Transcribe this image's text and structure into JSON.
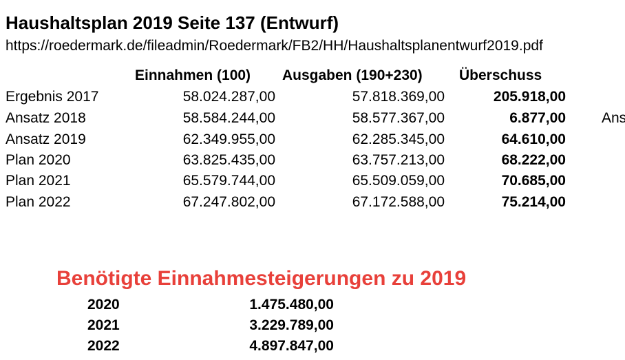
{
  "header": {
    "title": "Haushaltsplan 2019 Seite 137 (Entwurf)",
    "url": "https://roedermark.de/fileadmin/Roedermark/FB2/HH/Haushaltsplanentwurf2019.pdf"
  },
  "table": {
    "columns": [
      "Einnahmen (100)",
      "Ausgaben (190+230)",
      "Überschuss"
    ],
    "rows": [
      {
        "label": "Ergebnis 2017",
        "einnahmen": "58.024.287,00",
        "ausgaben": "57.818.369,00",
        "ueberschuss": "205.918,00"
      },
      {
        "label": "Ansatz 2018",
        "einnahmen": "58.584.244,00",
        "ausgaben": "58.577.367,00",
        "ueberschuss": "6.877,00"
      },
      {
        "label": "Ansatz 2019",
        "einnahmen": "62.349.955,00",
        "ausgaben": "62.285.345,00",
        "ueberschuss": "64.610,00"
      },
      {
        "label": "Plan 2020",
        "einnahmen": "63.825.435,00",
        "ausgaben": "63.757.213,00",
        "ueberschuss": "68.222,00"
      },
      {
        "label": "Plan 2021",
        "einnahmen": "65.579.744,00",
        "ausgaben": "65.509.059,00",
        "ueberschuss": "70.685,00"
      },
      {
        "label": "Plan 2022",
        "einnahmen": "67.247.802,00",
        "ausgaben": "67.172.588,00",
        "ueberschuss": "75.214,00"
      }
    ],
    "cut_off_text": "Ans"
  },
  "increases": {
    "title": "Benötigte Einnahmesteigerungen zu 2019",
    "title_color": "#e8403a",
    "rows": [
      {
        "year": "2020",
        "value": "1.475.480,00"
      },
      {
        "year": "2021",
        "value": "3.229.789,00"
      },
      {
        "year": "2022",
        "value": "4.897.847,00"
      }
    ]
  }
}
